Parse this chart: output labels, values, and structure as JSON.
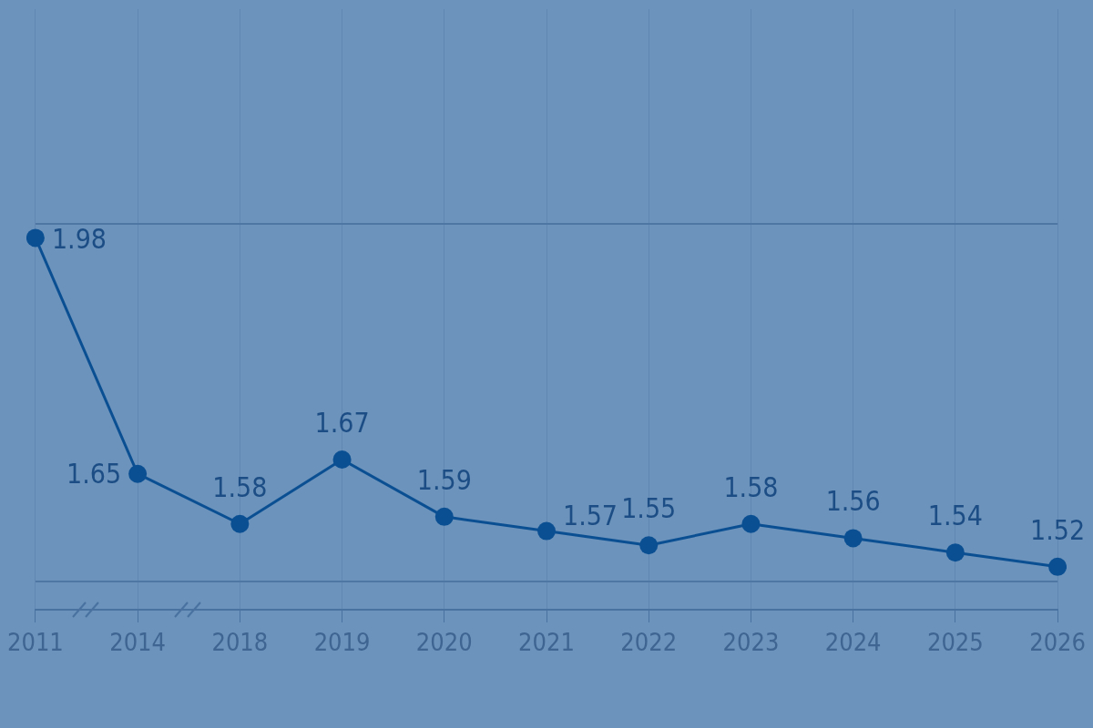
{
  "chart_data": {
    "type": "line",
    "categories": [
      "2011",
      "2014",
      "2018",
      "2019",
      "2020",
      "2021",
      "2022",
      "2023",
      "2024",
      "2025",
      "2026"
    ],
    "series": [
      {
        "color": "#0b4f93",
        "values": [
          1.98,
          1.65,
          1.58,
          1.67,
          1.59,
          1.57,
          1.55,
          1.58,
          1.56,
          1.54,
          1.52
        ]
      }
    ],
    "ylim": [
      1.46,
      2.3
    ],
    "yticks": [
      1.5,
      2.0
    ],
    "grid": true,
    "tick_labels": "x",
    "marker": "circle",
    "line_style": "solid",
    "legend": false,
    "data_labels": true
  }
}
